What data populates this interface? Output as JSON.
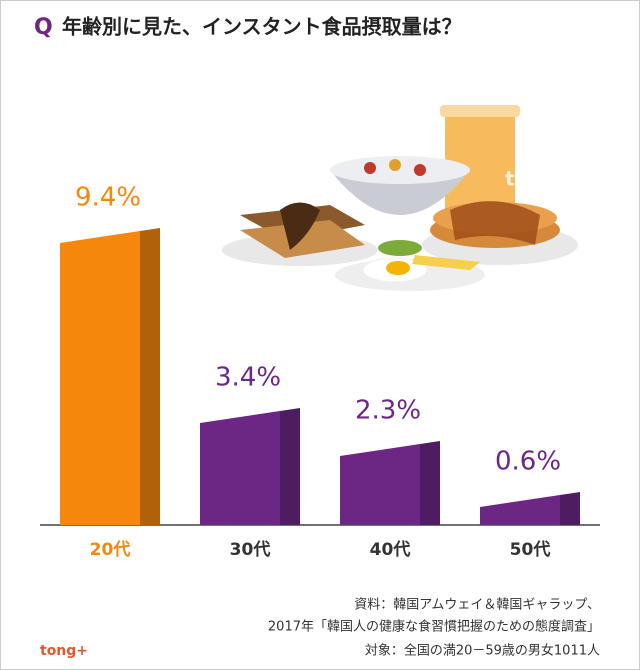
{
  "chart_data": {
    "type": "bar",
    "title_mark": "Q",
    "title": "年齢別に見た、インスタント食品摂取量は？",
    "categories": [
      "20代",
      "30代",
      "40代",
      "50代"
    ],
    "values": [
      9.4,
      3.4,
      2.3,
      0.6
    ],
    "value_labels": [
      "9.4%",
      "3.4%",
      "2.3%",
      "0.6%"
    ],
    "colors": [
      "#f5870c",
      "#6c2785",
      "#6c2785",
      "#6c2785"
    ],
    "source": [
      "資料：韓国アムウェイ＆韓国ギャラップ、",
      "2017年「韓国人の健康な食習慣把握のための態度調査」",
      "対象：全国の満20－59歳の男女1011人"
    ],
    "logo": "tong+"
  }
}
